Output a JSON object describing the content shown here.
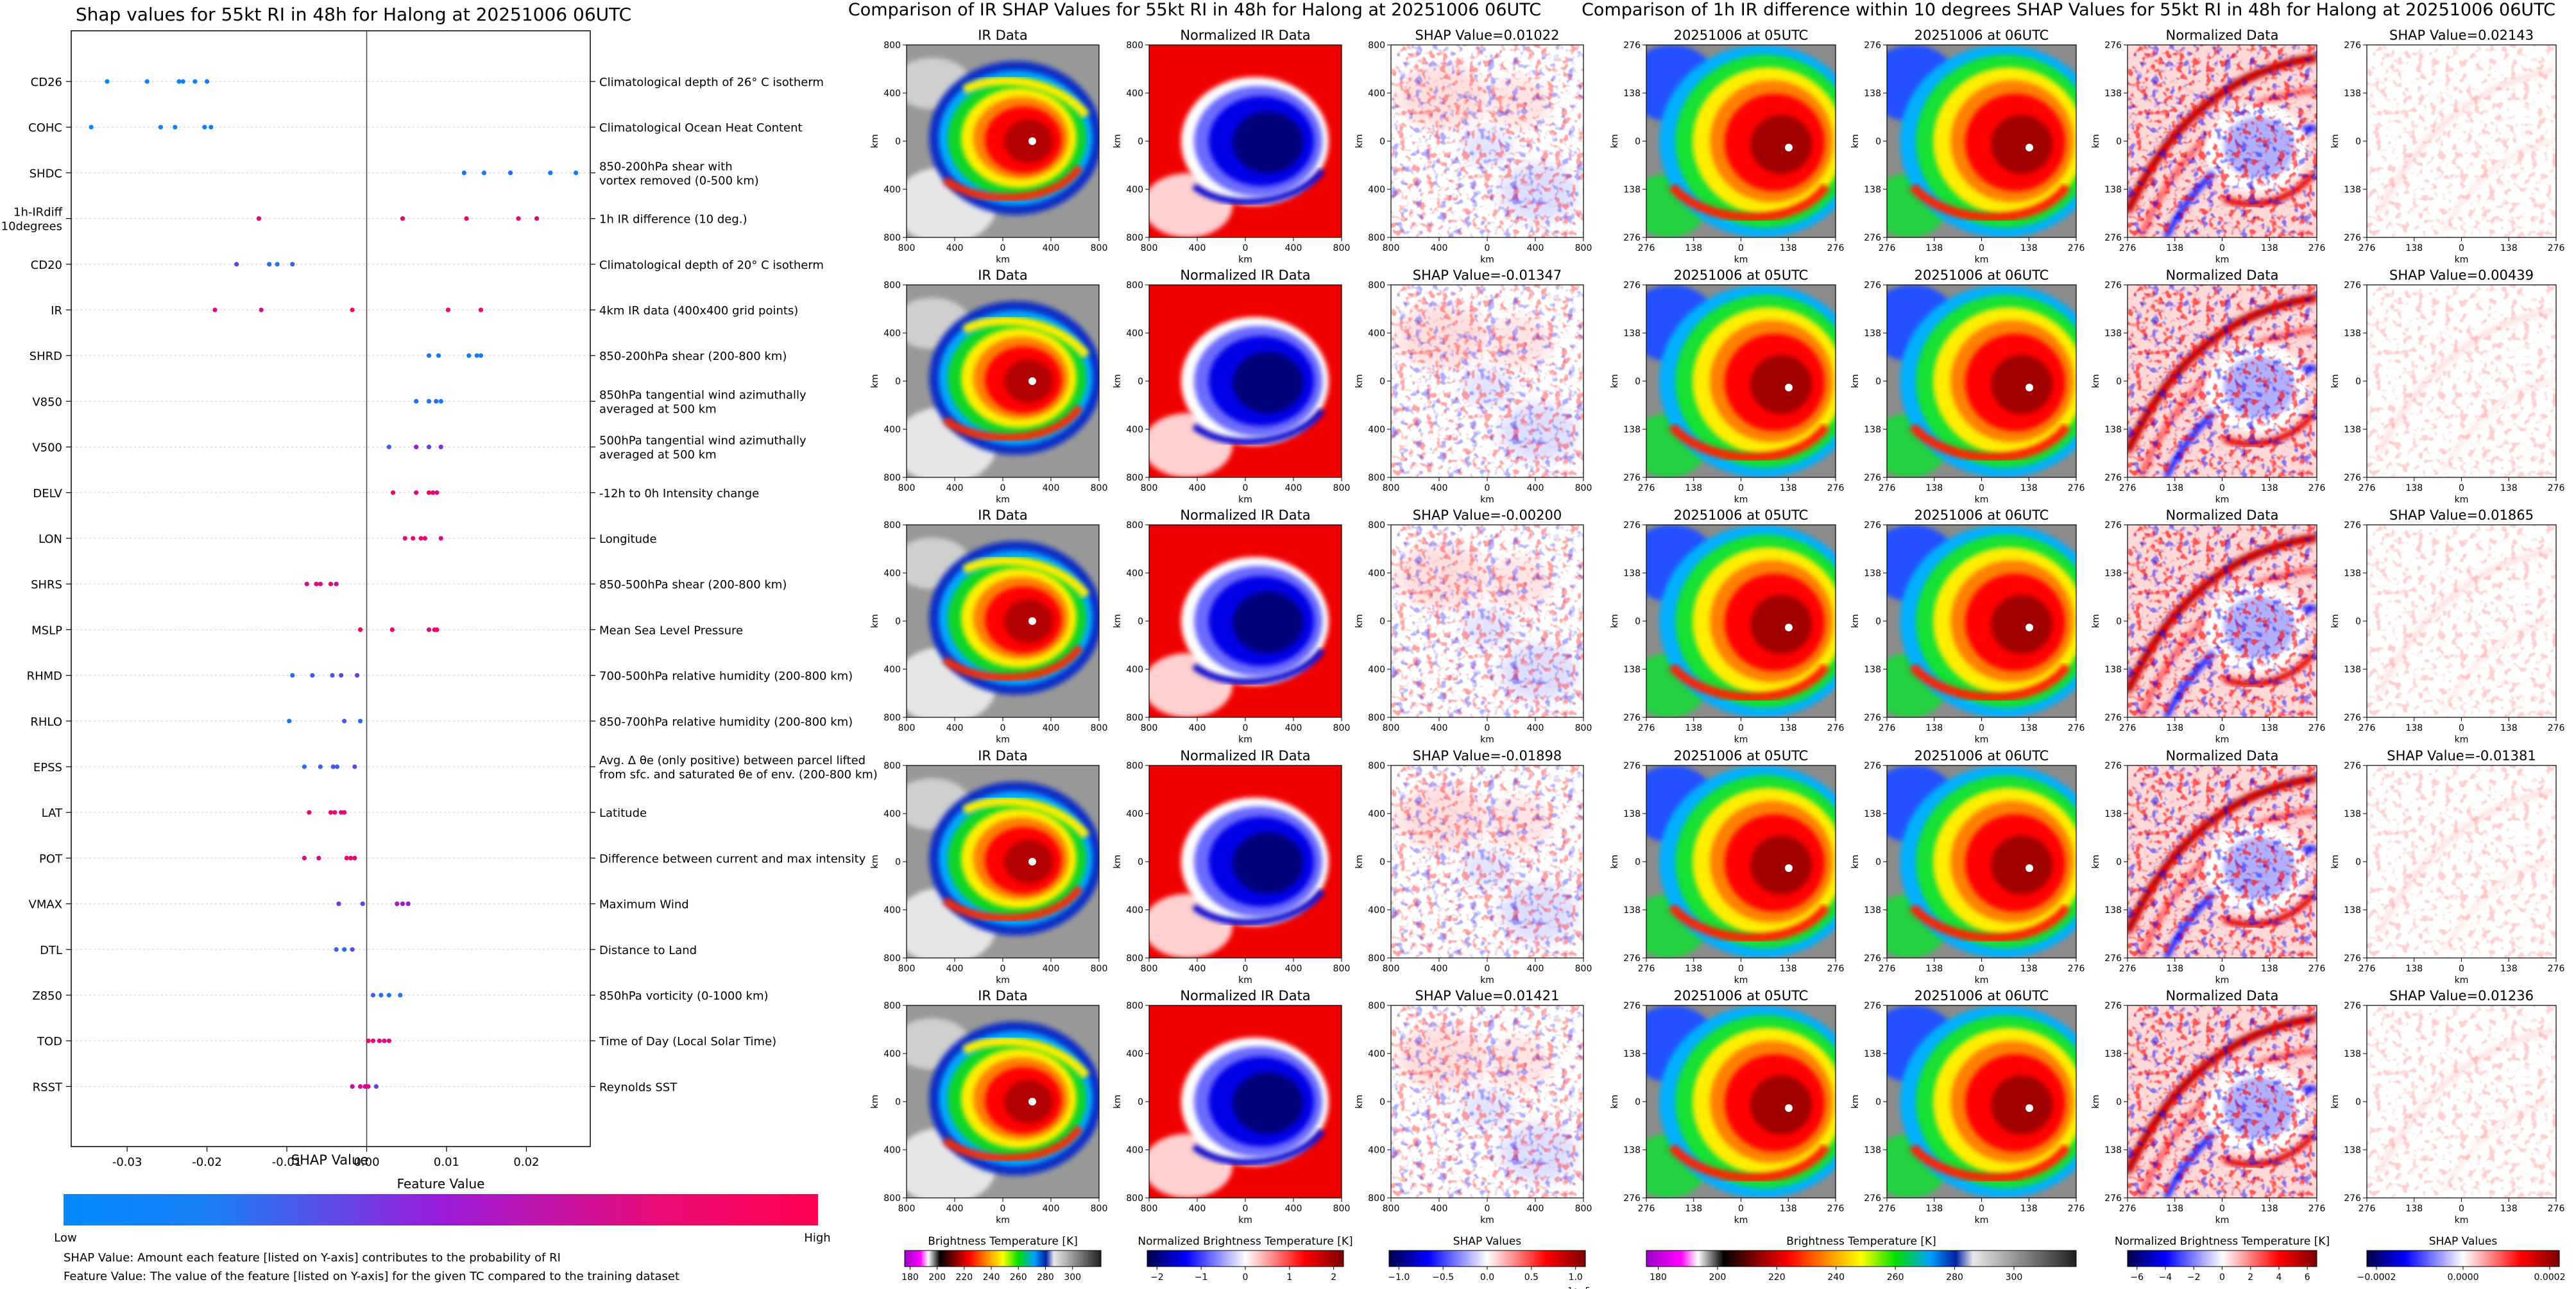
{
  "beeswarm": {
    "title": "Shap values for 55kt RI in 48h for Halong at 20251006 06UTC",
    "xlabel": "SHAP Value",
    "colorbar_title": "Feature Value",
    "colorbar_low": "Low",
    "colorbar_high": "High",
    "note1": "SHAP Value: Amount each feature [listed on Y-axis] contributes to the probability of RI",
    "note2": "Feature Value: The value of the feature [listed on Y-axis] for the given TC compared to the training dataset"
  },
  "chart_data": [
    {
      "type": "scatter",
      "title": "Shap values for 55kt RI in 48h for Halong at 20251006 06UTC",
      "xlabel": "SHAP Value",
      "xlim": [
        -0.037,
        0.028
      ],
      "xticks": [
        "-0.03",
        "-0.02",
        "-0.01",
        "0.00",
        "0.01",
        "0.02"
      ],
      "xtick_values": [
        -0.03,
        -0.02,
        -0.01,
        0.0,
        0.01,
        0.02
      ],
      "colors": {
        "low": "#008afb",
        "mid": "#9a1bd8",
        "high": "#ff0052"
      },
      "features": [
        {
          "name": "CD26",
          "desc": "Climatological depth of 26° C isotherm",
          "points": [
            [
              -0.0325,
              0.02
            ],
            [
              -0.0275,
              0.05
            ],
            [
              -0.0235,
              0.02
            ],
            [
              -0.023,
              0.04
            ],
            [
              -0.0215,
              0.03
            ],
            [
              -0.02,
              0.06
            ]
          ]
        },
        {
          "name": "COHC",
          "desc": "Climatological Ocean Heat Content",
          "points": [
            [
              -0.0345,
              0.02
            ],
            [
              -0.0258,
              0.05
            ],
            [
              -0.024,
              0.03
            ],
            [
              -0.0203,
              0.04
            ],
            [
              -0.0195,
              0.06
            ]
          ]
        },
        {
          "name": "SHDC",
          "desc": "850-200hPa shear with\nvortex removed (0-500 km)",
          "points": [
            [
              0.0122,
              0.1
            ],
            [
              0.0147,
              0.08
            ],
            [
              0.018,
              0.12
            ],
            [
              0.023,
              0.07
            ],
            [
              0.0262,
              0.06
            ]
          ]
        },
        {
          "name": "1h-IRdiff\n10degrees",
          "desc": "1h IR difference (10 deg.)",
          "points": [
            [
              -0.0135,
              0.85
            ],
            [
              0.0045,
              0.9
            ],
            [
              0.0125,
              0.92
            ],
            [
              0.019,
              0.88
            ],
            [
              0.0213,
              0.86
            ]
          ]
        },
        {
          "name": "CD20",
          "desc": "Climatological depth of 20° C isotherm",
          "points": [
            [
              -0.0163,
              0.35
            ],
            [
              -0.0122,
              0.15
            ],
            [
              -0.0112,
              0.1
            ],
            [
              -0.0093,
              0.2
            ]
          ]
        },
        {
          "name": "IR",
          "desc": "4km IR data (400x400 grid points)",
          "points": [
            [
              -0.019,
              0.85
            ],
            [
              -0.0132,
              0.75
            ],
            [
              -0.0018,
              0.95
            ],
            [
              0.0102,
              0.9
            ],
            [
              0.0143,
              0.92
            ]
          ]
        },
        {
          "name": "SHRD",
          "desc": "850-200hPa shear (200-800 km)",
          "points": [
            [
              0.0078,
              0.1
            ],
            [
              0.009,
              0.08
            ],
            [
              0.0128,
              0.06
            ],
            [
              0.0138,
              0.05
            ],
            [
              0.0143,
              0.1
            ]
          ]
        },
        {
          "name": "V850",
          "desc": "850hPa tangential wind azimuthally\naveraged at 500 km",
          "points": [
            [
              0.0062,
              0.1
            ],
            [
              0.0078,
              0.08
            ],
            [
              0.0087,
              0.15
            ],
            [
              0.0093,
              0.06
            ]
          ]
        },
        {
          "name": "V500",
          "desc": "500hPa tangential wind azimuthally\naveraged at 500 km",
          "points": [
            [
              0.0028,
              0.2
            ],
            [
              0.0062,
              0.5
            ],
            [
              0.0078,
              0.3
            ],
            [
              0.0093,
              0.4
            ]
          ]
        },
        {
          "name": "DELV",
          "desc": "-12h to 0h Intensity change",
          "points": [
            [
              0.0033,
              0.9
            ],
            [
              0.0062,
              0.85
            ],
            [
              0.0078,
              0.92
            ],
            [
              0.0083,
              0.88
            ],
            [
              0.0088,
              0.8
            ]
          ]
        },
        {
          "name": "LON",
          "desc": "Longitude",
          "points": [
            [
              0.0048,
              0.85
            ],
            [
              0.0058,
              0.9
            ],
            [
              0.0068,
              0.88
            ],
            [
              0.0073,
              0.92
            ],
            [
              0.0093,
              0.8
            ]
          ]
        },
        {
          "name": "SHRS",
          "desc": "850-500hPa shear (200-800 km)",
          "points": [
            [
              -0.0075,
              0.75
            ],
            [
              -0.0063,
              0.85
            ],
            [
              -0.0058,
              0.8
            ],
            [
              -0.0045,
              0.9
            ],
            [
              -0.0038,
              0.7
            ]
          ]
        },
        {
          "name": "MSLP",
          "desc": "Mean Sea Level Pressure",
          "points": [
            [
              -0.0008,
              0.95
            ],
            [
              0.0032,
              0.9
            ],
            [
              0.0078,
              0.85
            ],
            [
              0.0085,
              0.92
            ],
            [
              0.0088,
              0.88
            ]
          ]
        },
        {
          "name": "RHMD",
          "desc": "700-500hPa relative humidity (200-800 km)",
          "points": [
            [
              -0.0093,
              0.15
            ],
            [
              -0.0068,
              0.2
            ],
            [
              -0.0043,
              0.25
            ],
            [
              -0.0032,
              0.3
            ],
            [
              -0.0012,
              0.35
            ]
          ]
        },
        {
          "name": "RHLO",
          "desc": "850-700hPa relative humidity (200-800 km)",
          "points": [
            [
              -0.0097,
              0.1
            ],
            [
              -0.0028,
              0.2
            ],
            [
              -0.0008,
              0.15
            ]
          ]
        },
        {
          "name": "EPSS",
          "desc": "Avg. Δ θe (only positive) between parcel lifted\nfrom sfc. and saturated θe of env. (200-800 km)",
          "points": [
            [
              -0.0078,
              0.15
            ],
            [
              -0.0058,
              0.2
            ],
            [
              -0.0042,
              0.25
            ],
            [
              -0.0037,
              0.18
            ],
            [
              -0.0015,
              0.3
            ]
          ]
        },
        {
          "name": "LAT",
          "desc": "Latitude",
          "points": [
            [
              -0.0072,
              0.9
            ],
            [
              -0.0045,
              0.92
            ],
            [
              -0.004,
              0.88
            ],
            [
              -0.0032,
              0.85
            ],
            [
              -0.0028,
              0.9
            ]
          ]
        },
        {
          "name": "POT",
          "desc": "Difference between current and max intensity",
          "points": [
            [
              -0.0078,
              0.8
            ],
            [
              -0.006,
              0.75
            ],
            [
              -0.0025,
              0.9
            ],
            [
              -0.002,
              0.85
            ],
            [
              -0.0015,
              0.88
            ]
          ]
        },
        {
          "name": "VMAX",
          "desc": "Maximum Wind",
          "points": [
            [
              -0.0035,
              0.4
            ],
            [
              -0.0005,
              0.3
            ],
            [
              0.0038,
              0.6
            ],
            [
              0.0045,
              0.55
            ],
            [
              0.0052,
              0.5
            ]
          ]
        },
        {
          "name": "DTL",
          "desc": "Distance to Land",
          "points": [
            [
              -0.0038,
              0.2
            ],
            [
              -0.0028,
              0.15
            ],
            [
              -0.0018,
              0.25
            ]
          ]
        },
        {
          "name": "Z850",
          "desc": "850hPa vorticity (0-1000 km)",
          "points": [
            [
              0.0008,
              0.2
            ],
            [
              0.0018,
              0.15
            ],
            [
              0.0028,
              0.1
            ],
            [
              0.0042,
              0.12
            ]
          ]
        },
        {
          "name": "TOD",
          "desc": "Time of Day (Local Solar Time)",
          "points": [
            [
              0.0002,
              0.9
            ],
            [
              0.0008,
              0.85
            ],
            [
              0.0016,
              0.88
            ],
            [
              0.0022,
              0.8
            ],
            [
              0.0028,
              0.92
            ]
          ]
        },
        {
          "name": "RSST",
          "desc": "Reynolds SST",
          "points": [
            [
              -0.0018,
              0.7
            ],
            [
              -0.0008,
              0.8
            ],
            [
              -0.0002,
              0.75
            ],
            [
              0.0002,
              0.85
            ],
            [
              0.0012,
              0.3
            ]
          ]
        }
      ]
    },
    {
      "type": "heatmap",
      "title": "Comparison of IR SHAP Values for 55kt RI in 48h for Halong at 20251006 06UTC",
      "axis_label": "km",
      "ticks": [
        "800",
        "400",
        "0",
        "400",
        "800"
      ],
      "panel_titles": [
        "IR Data",
        "Normalized IR Data"
      ],
      "shap_titles": [
        "SHAP Value=0.01022",
        "SHAP Value=-0.01347",
        "SHAP Value=-0.00200",
        "SHAP Value=-0.01898",
        "SHAP Value=0.01421"
      ],
      "colorbars": [
        {
          "label": "Brightness Temperature [K]",
          "ticks": [
            "180",
            "200",
            "220",
            "240",
            "260",
            "280",
            "300"
          ],
          "kind": "ir"
        },
        {
          "label": "Normalized Brightness Temperature [K]",
          "ticks": [
            "−2",
            "−1",
            "0",
            "1",
            "2"
          ],
          "kind": "bwr"
        },
        {
          "label": "SHAP Values",
          "ticks": [
            "−1.0",
            "−0.5",
            "0.0",
            "0.5",
            "1.0"
          ],
          "kind": "bwr",
          "offset": "1e−5"
        }
      ]
    },
    {
      "type": "heatmap",
      "title": "Comparison of 1h IR difference within 10 degrees SHAP Values for 55kt RI in 48h for Halong at 20251006 06UTC",
      "axis_label": "km",
      "ticks": [
        "276",
        "138",
        "0",
        "138",
        "276"
      ],
      "panel_titles": [
        "20251006 at 05UTC",
        "20251006 at 06UTC",
        "Normalized Data"
      ],
      "shap_titles": [
        "SHAP Value=0.02143",
        "SHAP Value=0.00439",
        "SHAP Value=0.01865",
        "SHAP Value=-0.01381",
        "SHAP Value=0.01236"
      ],
      "colorbars": [
        {
          "label": "Brightness Temperature [K]",
          "ticks": [
            "180",
            "200",
            "220",
            "240",
            "260",
            "280",
            "300"
          ],
          "kind": "ir"
        },
        {
          "label": "Normalized Brightness Temperature [K]",
          "ticks": [
            "−6",
            "−4",
            "−2",
            "0",
            "2",
            "4",
            "6"
          ],
          "kind": "bwr"
        },
        {
          "label": "SHAP Values",
          "ticks": [
            "−0.0002",
            "0.0000",
            "0.0002"
          ],
          "kind": "bwr"
        }
      ]
    }
  ]
}
